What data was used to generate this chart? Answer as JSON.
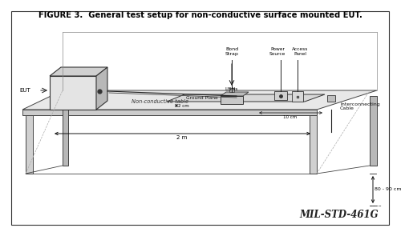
{
  "title": "FIGURE 3.  General test setup for non-conductive surface mounted EUT.",
  "watermark": "MIL-STD-461G",
  "bg_color": "#ffffff",
  "labels": {
    "eut": "EUT",
    "non_conductive_table": "Non-conductive table",
    "bond_strap": "Bond\nStrap",
    "lisn": "LISNs",
    "ground_plane": "Ground Plane",
    "two_cm": "2 cm",
    "ten_cm": "10 cm",
    "two_m": "2 m",
    "height": "80 - 90 cm",
    "power_source": "Power\nSource",
    "access_panel": "Access\nPanel",
    "interconnecting_cable": "Interconnecting\nCable"
  }
}
